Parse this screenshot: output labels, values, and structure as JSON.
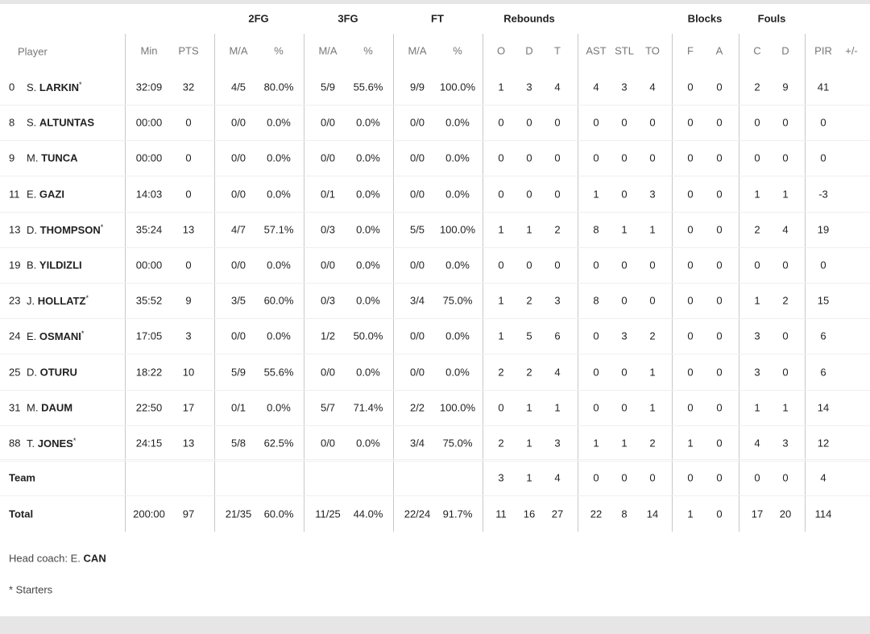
{
  "group_headers": [
    {
      "label": "2FG",
      "col": "fg2"
    },
    {
      "label": "3FG",
      "col": "fg3"
    },
    {
      "label": "FT",
      "col": "ft"
    },
    {
      "label": "Rebounds",
      "col": "reb"
    },
    {
      "label": "Blocks",
      "col": "blk"
    },
    {
      "label": "Fouls",
      "col": "fls"
    }
  ],
  "player_header": "Player",
  "columns": [
    "Min",
    "PTS",
    "M/A",
    "%",
    "M/A",
    "%",
    "M/A",
    "%",
    "O",
    "D",
    "T",
    "AST",
    "STL",
    "TO",
    "F",
    "A",
    "C",
    "D",
    "PIR",
    "+/-"
  ],
  "starter_mark": "*",
  "players": [
    {
      "no": "0",
      "first": "S.",
      "last": "LARKIN",
      "starter": true,
      "stats": [
        "32:09",
        "32",
        "4/5",
        "80.0%",
        "5/9",
        "55.6%",
        "9/9",
        "100.0%",
        "1",
        "3",
        "4",
        "4",
        "3",
        "4",
        "0",
        "0",
        "2",
        "9",
        "41",
        ""
      ]
    },
    {
      "no": "8",
      "first": "S.",
      "last": "ALTUNTAS",
      "starter": false,
      "stats": [
        "00:00",
        "0",
        "0/0",
        "0.0%",
        "0/0",
        "0.0%",
        "0/0",
        "0.0%",
        "0",
        "0",
        "0",
        "0",
        "0",
        "0",
        "0",
        "0",
        "0",
        "0",
        "0",
        ""
      ]
    },
    {
      "no": "9",
      "first": "M.",
      "last": "TUNCA",
      "starter": false,
      "stats": [
        "00:00",
        "0",
        "0/0",
        "0.0%",
        "0/0",
        "0.0%",
        "0/0",
        "0.0%",
        "0",
        "0",
        "0",
        "0",
        "0",
        "0",
        "0",
        "0",
        "0",
        "0",
        "0",
        ""
      ]
    },
    {
      "no": "11",
      "first": "E.",
      "last": "GAZI",
      "starter": false,
      "stats": [
        "14:03",
        "0",
        "0/0",
        "0.0%",
        "0/1",
        "0.0%",
        "0/0",
        "0.0%",
        "0",
        "0",
        "0",
        "1",
        "0",
        "3",
        "0",
        "0",
        "1",
        "1",
        "-3",
        ""
      ]
    },
    {
      "no": "13",
      "first": "D.",
      "last": "THOMPSON",
      "starter": true,
      "stats": [
        "35:24",
        "13",
        "4/7",
        "57.1%",
        "0/3",
        "0.0%",
        "5/5",
        "100.0%",
        "1",
        "1",
        "2",
        "8",
        "1",
        "1",
        "0",
        "0",
        "2",
        "4",
        "19",
        ""
      ]
    },
    {
      "no": "19",
      "first": "B.",
      "last": "YILDIZLI",
      "starter": false,
      "stats": [
        "00:00",
        "0",
        "0/0",
        "0.0%",
        "0/0",
        "0.0%",
        "0/0",
        "0.0%",
        "0",
        "0",
        "0",
        "0",
        "0",
        "0",
        "0",
        "0",
        "0",
        "0",
        "0",
        ""
      ]
    },
    {
      "no": "23",
      "first": "J.",
      "last": "HOLLATZ",
      "starter": true,
      "stats": [
        "35:52",
        "9",
        "3/5",
        "60.0%",
        "0/3",
        "0.0%",
        "3/4",
        "75.0%",
        "1",
        "2",
        "3",
        "8",
        "0",
        "0",
        "0",
        "0",
        "1",
        "2",
        "15",
        ""
      ]
    },
    {
      "no": "24",
      "first": "E.",
      "last": "OSMANI",
      "starter": true,
      "stats": [
        "17:05",
        "3",
        "0/0",
        "0.0%",
        "1/2",
        "50.0%",
        "0/0",
        "0.0%",
        "1",
        "5",
        "6",
        "0",
        "3",
        "2",
        "0",
        "0",
        "3",
        "0",
        "6",
        ""
      ]
    },
    {
      "no": "25",
      "first": "D.",
      "last": "OTURU",
      "starter": false,
      "stats": [
        "18:22",
        "10",
        "5/9",
        "55.6%",
        "0/0",
        "0.0%",
        "0/0",
        "0.0%",
        "2",
        "2",
        "4",
        "0",
        "0",
        "1",
        "0",
        "0",
        "3",
        "0",
        "6",
        ""
      ]
    },
    {
      "no": "31",
      "first": "M.",
      "last": "DAUM",
      "starter": false,
      "stats": [
        "22:50",
        "17",
        "0/1",
        "0.0%",
        "5/7",
        "71.4%",
        "2/2",
        "100.0%",
        "0",
        "1",
        "1",
        "0",
        "0",
        "1",
        "0",
        "0",
        "1",
        "1",
        "14",
        ""
      ]
    },
    {
      "no": "88",
      "first": "T.",
      "last": "JONES",
      "starter": true,
      "stats": [
        "24:15",
        "13",
        "5/8",
        "62.5%",
        "0/0",
        "0.0%",
        "3/4",
        "75.0%",
        "2",
        "1",
        "3",
        "1",
        "1",
        "2",
        "1",
        "0",
        "4",
        "3",
        "12",
        ""
      ]
    }
  ],
  "team_row": {
    "label": "Team",
    "stats": [
      "",
      "",
      "",
      "",
      "",
      "",
      "",
      "",
      "3",
      "1",
      "4",
      "0",
      "0",
      "0",
      "0",
      "0",
      "0",
      "0",
      "4",
      ""
    ]
  },
  "total_row": {
    "label": "Total",
    "stats": [
      "200:00",
      "97",
      "21/35",
      "60.0%",
      "11/25",
      "44.0%",
      "22/24",
      "91.7%",
      "11",
      "16",
      "27",
      "22",
      "8",
      "14",
      "1",
      "0",
      "17",
      "20",
      "114",
      ""
    ]
  },
  "head_coach": {
    "label": "Head coach:",
    "first": "E.",
    "last": "CAN"
  },
  "starters_note": "* Starters"
}
